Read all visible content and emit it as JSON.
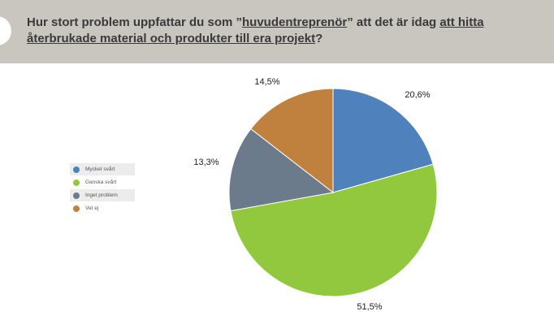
{
  "header": {
    "title_parts": {
      "p1": "Hur stort problem uppfattar du som ”",
      "u1": "huvudentreprenör",
      "p2": "” att det är idag ",
      "u2": "att hitta återbrukade material och produkter till era projekt",
      "p3": "?"
    }
  },
  "chart_data": {
    "type": "pie",
    "title": "Hur stort problem uppfattar du som ”huvudentreprenör” att det är idag att hitta återbrukade material och produkter till era projekt?",
    "legend_position": "left",
    "slices": [
      {
        "label": "Mycket svårt",
        "value": 20.6,
        "display": "20,6%",
        "color": "#4f81bd"
      },
      {
        "label": "Ganska svårt",
        "value": 51.5,
        "display": "51,5%",
        "color": "#92c83e"
      },
      {
        "label": "Inget problem",
        "value": 13.3,
        "display": "13,3%",
        "color": "#6b7b8c"
      },
      {
        "label": "Vet ej",
        "value": 14.5,
        "display": "14,5%",
        "color": "#c0813f"
      }
    ]
  }
}
